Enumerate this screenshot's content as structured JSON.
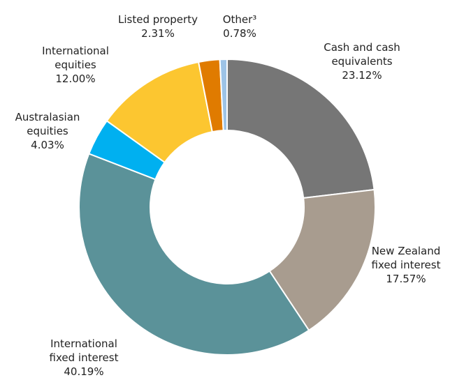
{
  "chart_data": {
    "type": "donut",
    "categories": [
      "Cash and cash equivalents",
      "New Zealand fixed interest",
      "International fixed interest",
      "Australasian equities",
      "International equities",
      "Listed property",
      "Other³"
    ],
    "values": [
      23.12,
      17.57,
      40.19,
      4.03,
      12,
      2.31,
      0.78
    ],
    "value_labels": [
      "23.12%",
      "17.57%",
      "40.19%",
      "4.03%",
      "12.00%",
      "2.31%",
      "0.78%"
    ],
    "colors": [
      "#767676",
      "#a89c8f",
      "#5b9299",
      "#00b0f0",
      "#fcc630",
      "#e07b00",
      "#9dc3e6"
    ]
  }
}
